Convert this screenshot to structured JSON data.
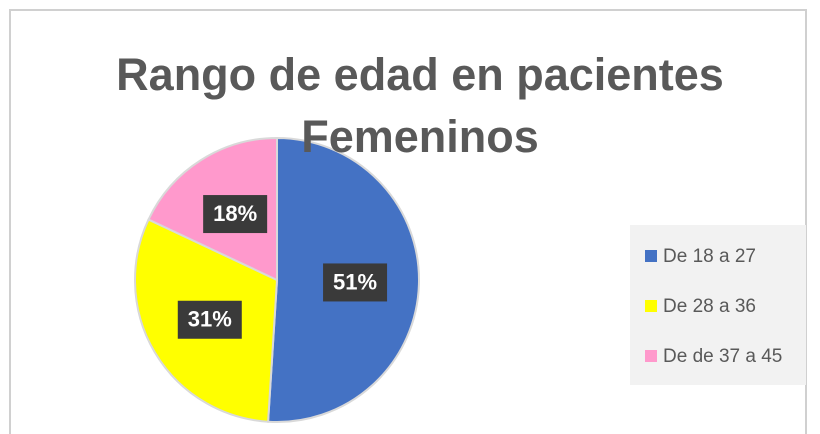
{
  "chart_data": {
    "type": "pie",
    "title": "Rango de edad en pacientes Femeninos",
    "categories": [
      "De 18 a 27",
      "De 28 a 36",
      "De de 37 a 45"
    ],
    "values": [
      51,
      31,
      18
    ],
    "value_labels": [
      "51%",
      "31%",
      "18%"
    ],
    "colors": [
      "#4472c4",
      "#ffff00",
      "#ff99cc"
    ],
    "legend": "right"
  }
}
